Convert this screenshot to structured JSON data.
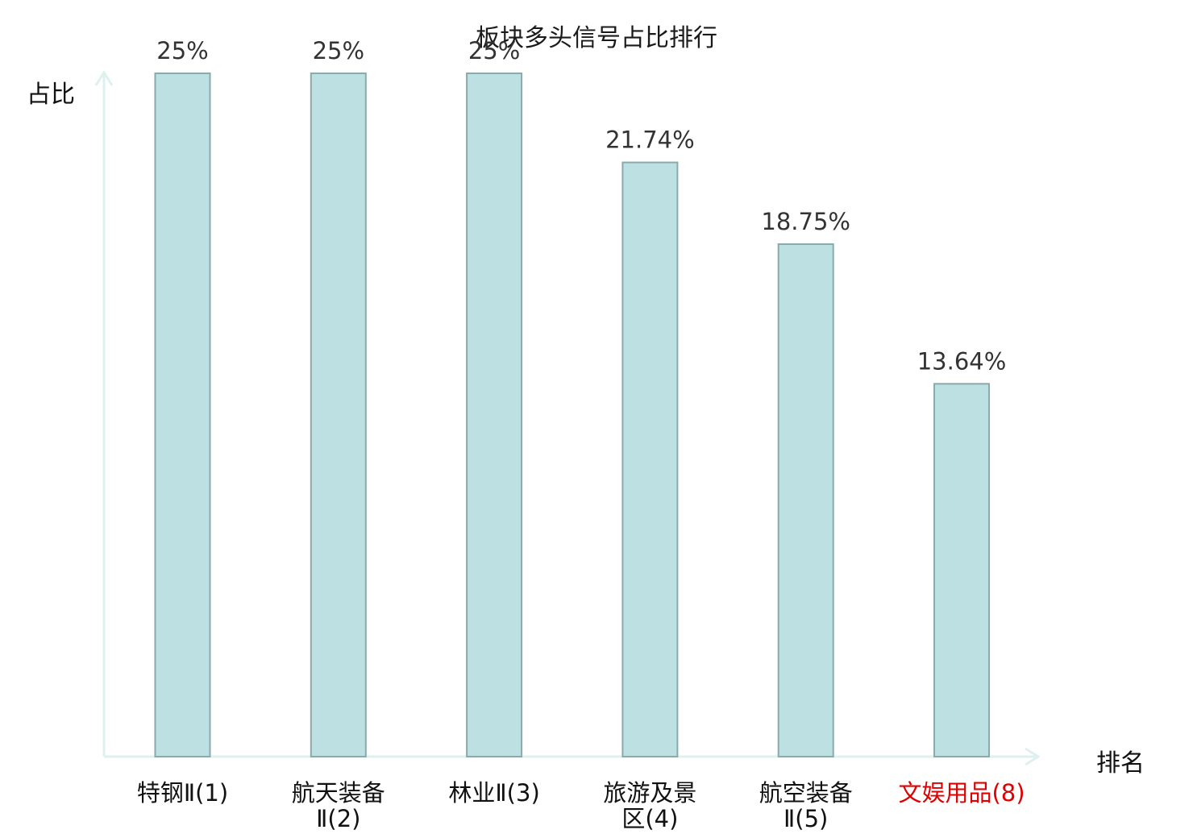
{
  "chart_data": {
    "type": "bar",
    "title": "板块多头信号占比排行",
    "ylabel": "占比",
    "xlabel": "排名",
    "ylim": [
      0,
      25
    ],
    "grid": false,
    "categories": [
      [
        "特钢Ⅱ(1)"
      ],
      [
        "航天装备",
        "Ⅱ(2)"
      ],
      [
        "林业Ⅱ(3)"
      ],
      [
        "旅游及景",
        "区(4)"
      ],
      [
        "航空装备",
        "Ⅱ(5)"
      ],
      [
        "文娱用品(8)"
      ]
    ],
    "values": [
      25,
      25,
      25,
      21.74,
      18.75,
      13.64
    ],
    "data_labels": [
      "25%",
      "25%",
      "25%",
      "21.74%",
      "18.75%",
      "13.64%"
    ],
    "highlight_index": 5
  },
  "colors": {
    "bar_fill": "#bde0e3",
    "bar_stroke": "#8aaaab",
    "axis": "#dff1ee",
    "text": "#333333",
    "category_text": "#111111",
    "highlight": "#e00000"
  }
}
